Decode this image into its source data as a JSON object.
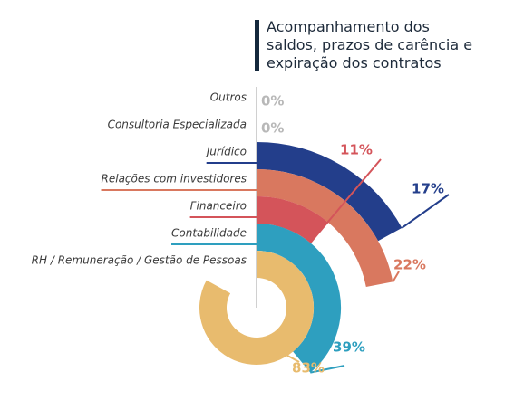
{
  "chart_data": {
    "type": "radial_bar",
    "title": "Acompanhamento dos saldos, prazos de carência e expiração dos contratos",
    "categories": [
      "Outros",
      "Consultoria Especializada",
      "Jurídico",
      "Relações com investidores",
      "Financeiro",
      "Contabilidade",
      "RH / Remuneração / Gestão de Pessoas"
    ],
    "values": [
      0,
      0,
      17,
      22,
      11,
      39,
      83
    ],
    "value_labels": [
      "0%",
      "0%",
      "17%",
      "22%",
      "11%",
      "39%",
      "83%"
    ],
    "colors": [
      "#b8b8b8",
      "#b8b8b8",
      "#233e8b",
      "#d9785f",
      "#d4545a",
      "#2e9fbf",
      "#e8bb6e"
    ],
    "vlim": [
      0,
      100
    ]
  }
}
